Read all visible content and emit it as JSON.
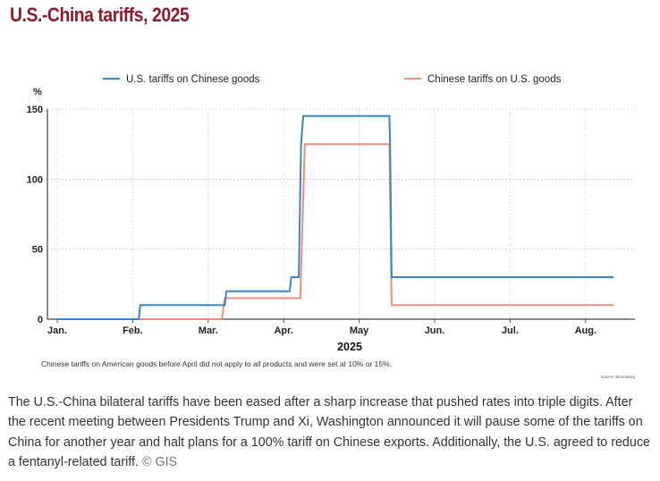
{
  "title": "U.S.-China tariffs, 2025",
  "chart_data": {
    "type": "line",
    "ylabel": "%",
    "xlabel": "2025",
    "ylim": [
      0,
      150
    ],
    "y_ticks": [
      0,
      50,
      100,
      150
    ],
    "x_ticks": [
      "Jan.",
      "Feb.",
      "Mar.",
      "Apr.",
      "May",
      "Jun.",
      "Jul.",
      "Aug."
    ],
    "grid": true,
    "legend": "top",
    "series": [
      {
        "name": "U.S. tariffs on Chinese goods",
        "color": "#3a87c4",
        "points": [
          {
            "x": 0.0,
            "y": 0
          },
          {
            "x": 1.08,
            "y": 0
          },
          {
            "x": 1.1,
            "y": 10
          },
          {
            "x": 2.22,
            "y": 10
          },
          {
            "x": 2.24,
            "y": 20
          },
          {
            "x": 3.08,
            "y": 20
          },
          {
            "x": 3.1,
            "y": 30
          },
          {
            "x": 3.2,
            "y": 30
          },
          {
            "x": 3.23,
            "y": 125
          },
          {
            "x": 3.26,
            "y": 145
          },
          {
            "x": 4.4,
            "y": 145
          },
          {
            "x": 4.41,
            "y": 125
          },
          {
            "x": 4.43,
            "y": 30
          },
          {
            "x": 7.37,
            "y": 30
          }
        ]
      },
      {
        "name": "Chinese tariffs on U.S. goods",
        "color": "#e8907f",
        "points": [
          {
            "x": 0.0,
            "y": 0
          },
          {
            "x": 2.18,
            "y": 0
          },
          {
            "x": 2.22,
            "y": 15
          },
          {
            "x": 3.22,
            "y": 15
          },
          {
            "x": 3.28,
            "y": 125
          },
          {
            "x": 4.4,
            "y": 125
          },
          {
            "x": 4.43,
            "y": 10
          },
          {
            "x": 7.37,
            "y": 10
          }
        ]
      }
    ],
    "annotations": [
      "Chinese tariffs on American goods before April did not apply to all products and were set at 10% or 15%."
    ],
    "source": "Source: Bloomberg"
  },
  "caption": {
    "text": "The U.S.-China bilateral tariffs have been eased after a sharp increase that pushed rates into triple digits. After the recent meeting between Presidents Trump and Xi, Washington announced it will pause some of the tariffs on China for another year and halt plans for a 100% tariff on Chinese exports. Additionally, the U.S. agreed to reduce a fentanyl-related tariff.",
    "credit": "© GIS"
  }
}
